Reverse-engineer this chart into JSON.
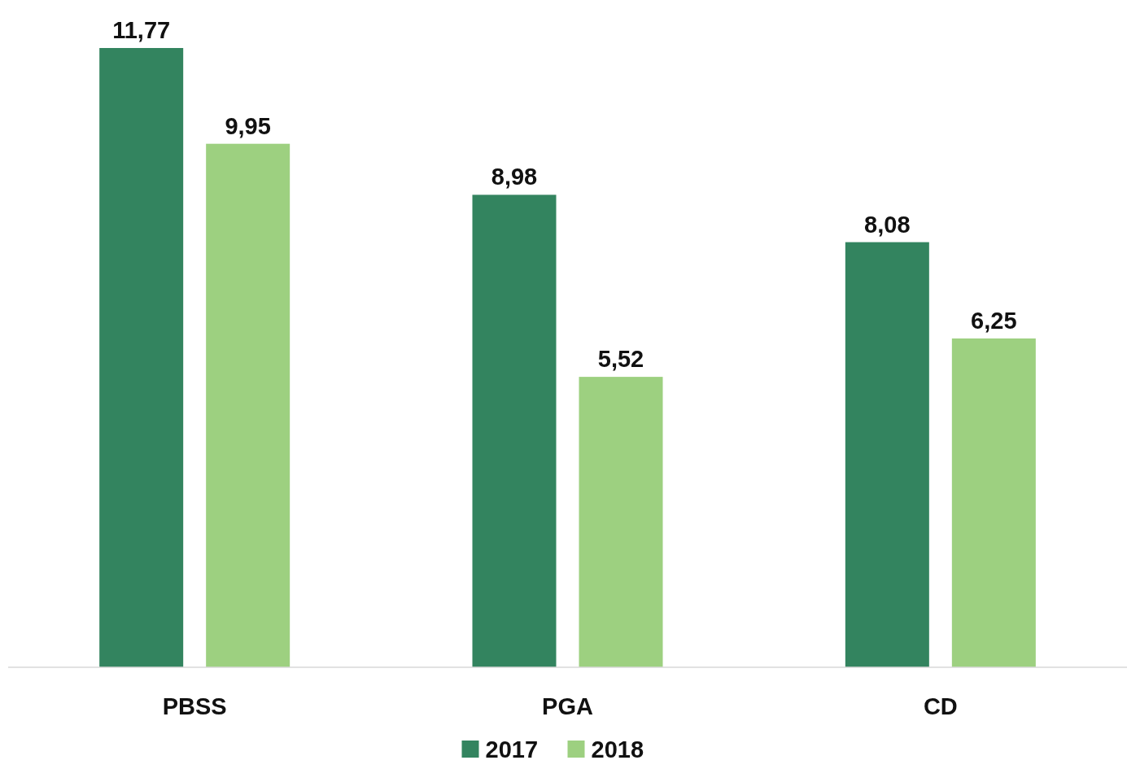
{
  "chart_data": {
    "type": "bar",
    "categories": [
      "PBSS",
      "PGA",
      "CD"
    ],
    "series": [
      {
        "name": "2017",
        "color": "#33845f",
        "values": [
          11.77,
          8.98,
          8.08
        ],
        "value_labels": [
          "11,77",
          "8,98",
          "8,08"
        ]
      },
      {
        "name": "2018",
        "color": "#9dd080",
        "values": [
          9.95,
          5.52,
          6.25
        ],
        "value_labels": [
          "9,95",
          "5,52",
          "6,25"
        ]
      }
    ],
    "legend": "bottom"
  }
}
